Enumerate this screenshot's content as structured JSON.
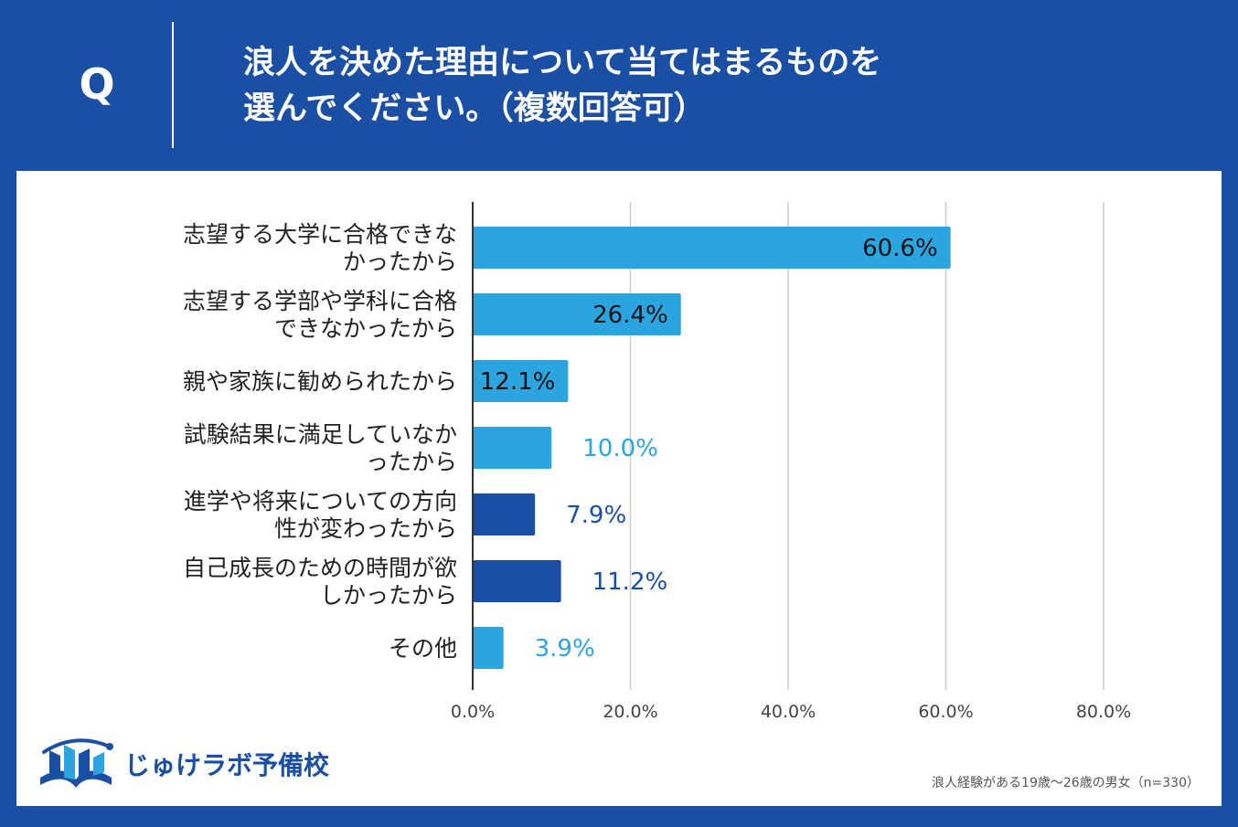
{
  "header": {
    "q_label": "Q",
    "title_line1": "浪人を決めた理由について当てはまるものを",
    "title_line2": "選んでください。（複数回答可）"
  },
  "colors": {
    "background": "#1a4fa3",
    "bar_light": "#2aa5e0",
    "bar_dark": "#1a4fa3"
  },
  "chart_data": {
    "type": "bar",
    "orientation": "horizontal",
    "categories": [
      [
        "志望する大学に合格できな",
        "かったから"
      ],
      [
        "志望する学部や学科に合格",
        "できなかったから"
      ],
      [
        "親や家族に勧められたから"
      ],
      [
        "試験結果に満足していなか",
        "ったから"
      ],
      [
        "進学や将来についての方向",
        "性が変わったから"
      ],
      [
        "自己成長のための時間が欲",
        "しかったから"
      ],
      [
        "その他"
      ]
    ],
    "values": [
      60.6,
      26.4,
      12.1,
      10.0,
      7.9,
      11.2,
      3.9
    ],
    "value_labels": [
      "60.6%",
      "26.4%",
      "12.1%",
      "10.0%",
      "7.9%",
      "11.2%",
      "3.9%"
    ],
    "bar_colors": [
      "light",
      "light",
      "light",
      "light",
      "dark",
      "dark",
      "light"
    ],
    "xlim": [
      0,
      80
    ],
    "xticks": [
      0,
      20,
      40,
      60,
      80
    ],
    "xtick_labels": [
      "0.0%",
      "20.0%",
      "40.0%",
      "60.0%",
      "80.0%"
    ],
    "grid": true
  },
  "logo": {
    "text": "じゅけラボ予備校",
    "icon": "book-logo-icon"
  },
  "footnote": "浪人経験がある19歳～26歳の男女（n=330）"
}
